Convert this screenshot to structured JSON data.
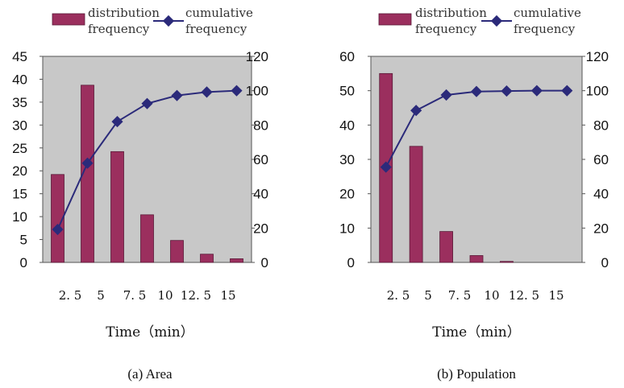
{
  "colors": {
    "bar": "#9b2f5e",
    "line": "#2b2a7a",
    "plot_bg": "#c8c8c8"
  },
  "chart_data": [
    {
      "type": "bar",
      "caption": "(a) Area",
      "legend": {
        "bar": [
          "distribution",
          "frequency"
        ],
        "line": [
          "cumulative",
          "frequency"
        ]
      },
      "xlabel": "Time（min）",
      "x_tick_labels": [
        "2. 5",
        "5",
        "7. 5",
        "10",
        "12. 5",
        "15"
      ],
      "ylim_left": [
        0,
        45
      ],
      "y_ticks_left": [
        0,
        5,
        10,
        15,
        20,
        25,
        30,
        35,
        40,
        45
      ],
      "ylim_right": [
        0,
        120
      ],
      "y_ticks_right": [
        0,
        20,
        40,
        60,
        80,
        100,
        120
      ],
      "series": [
        {
          "name": "distribution frequency",
          "axis": "left",
          "type": "bar",
          "values": [
            19.2,
            38.7,
            24.2,
            10.4,
            4.8,
            1.8,
            0.8
          ]
        },
        {
          "name": "cumulative frequency",
          "axis": "right",
          "type": "line",
          "values": [
            19.2,
            57.8,
            82,
            92.5,
            97.2,
            99.2,
            100
          ]
        }
      ]
    },
    {
      "type": "bar",
      "caption": "(b) Population",
      "legend": {
        "bar": [
          "distribution",
          "frequency"
        ],
        "line": [
          "cumulative",
          "frequency"
        ]
      },
      "xlabel": "Time（min）",
      "x_tick_labels": [
        "2. 5",
        "5",
        "7. 5",
        "10",
        "12. 5",
        "15"
      ],
      "ylim_left": [
        0,
        60
      ],
      "y_ticks_left": [
        0,
        10,
        20,
        30,
        40,
        50,
        60
      ],
      "ylim_right": [
        0,
        120
      ],
      "y_ticks_right": [
        0,
        20,
        40,
        60,
        80,
        100,
        120
      ],
      "series": [
        {
          "name": "distribution frequency",
          "axis": "left",
          "type": "bar",
          "values": [
            55,
            33.8,
            9,
            2,
            0.3,
            0,
            0
          ]
        },
        {
          "name": "cumulative frequency",
          "axis": "right",
          "type": "line",
          "values": [
            55.5,
            88.5,
            97.5,
            99.5,
            99.8,
            100,
            100
          ]
        }
      ]
    }
  ]
}
